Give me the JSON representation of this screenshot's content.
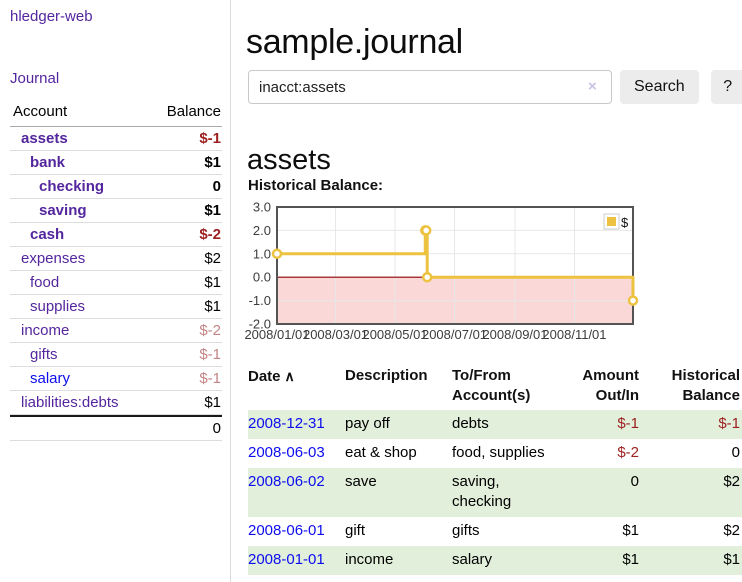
{
  "app": {
    "brand": "hledger-web"
  },
  "sidebar": {
    "nav_journal": "Journal",
    "accounts_table": {
      "headers": {
        "account": "Account",
        "balance": "Balance"
      },
      "rows": [
        {
          "name": "assets",
          "depth": 1,
          "bold": true,
          "balance": "$-1",
          "balance_style": "neg-strong",
          "link_style": "purple"
        },
        {
          "name": "bank",
          "depth": 2,
          "bold": true,
          "balance": "$1",
          "balance_style": "normal",
          "link_style": "purple"
        },
        {
          "name": "checking",
          "depth": 3,
          "bold": true,
          "balance": "0",
          "balance_style": "normal",
          "link_style": "purple"
        },
        {
          "name": "saving",
          "depth": 3,
          "bold": true,
          "balance": "$1",
          "balance_style": "normal",
          "link_style": "purple"
        },
        {
          "name": "cash",
          "depth": 2,
          "bold": true,
          "balance": "$-2",
          "balance_style": "neg-strong",
          "link_style": "purple"
        },
        {
          "name": "expenses",
          "depth": 1,
          "bold": false,
          "balance": "$2",
          "balance_style": "normal",
          "link_style": "purple"
        },
        {
          "name": "food",
          "depth": 2,
          "bold": false,
          "balance": "$1",
          "balance_style": "normal",
          "link_style": "purple"
        },
        {
          "name": "supplies",
          "depth": 2,
          "bold": false,
          "balance": "$1",
          "balance_style": "normal",
          "link_style": "purple"
        },
        {
          "name": "income",
          "depth": 1,
          "bold": false,
          "balance": "$-2",
          "balance_style": "neg-soft",
          "link_style": "purple"
        },
        {
          "name": "gifts",
          "depth": 2,
          "bold": false,
          "balance": "$-1",
          "balance_style": "neg-soft",
          "link_style": "purple"
        },
        {
          "name": "salary",
          "depth": 2,
          "bold": false,
          "balance": "$-1",
          "balance_style": "neg-soft",
          "link_style": "blue"
        },
        {
          "name": "liabilities:debts",
          "depth": 1,
          "bold": false,
          "balance": "$1",
          "balance_style": "normal",
          "link_style": "purple"
        }
      ],
      "total": "0"
    }
  },
  "main": {
    "title": "sample.journal",
    "search": {
      "value": "inacct:assets",
      "clear_label": "×",
      "button_label": "Search",
      "help_label": "?"
    },
    "account_heading": "assets",
    "chart_title": "Historical Balance:"
  },
  "chart_data": {
    "type": "line",
    "step": true,
    "title": "Historical Balance of assets",
    "ylim": [
      -2,
      3
    ],
    "yticks": [
      {
        "value": 3,
        "label": "3.0"
      },
      {
        "value": 2,
        "label": "2.0"
      },
      {
        "value": 1,
        "label": "1.0"
      },
      {
        "value": 0,
        "label": "0.0"
      },
      {
        "value": -1,
        "label": "-1.0"
      },
      {
        "value": -2,
        "label": "-2.0"
      }
    ],
    "xlim_days": [
      0,
      365
    ],
    "xticks": [
      {
        "day": 0,
        "label": "2008/01/01"
      },
      {
        "day": 60,
        "label": "2008/03/01"
      },
      {
        "day": 121,
        "label": "2008/05/01"
      },
      {
        "day": 182,
        "label": "2008/07/01"
      },
      {
        "day": 244,
        "label": "2008/09/01"
      },
      {
        "day": 305,
        "label": "2008/11/01"
      }
    ],
    "series": [
      {
        "name": "$",
        "color": "#edc240",
        "points": [
          {
            "date": "2008-01-01",
            "day": 0,
            "value": 1
          },
          {
            "date": "2008-06-01",
            "day": 152,
            "value": 2
          },
          {
            "date": "2008-06-02",
            "day": 153,
            "value": 2
          },
          {
            "date": "2008-06-03",
            "day": 154,
            "value": 0
          },
          {
            "date": "2008-12-31",
            "day": 365,
            "value": -1
          }
        ]
      }
    ],
    "legend": {
      "label": "$",
      "position": "top-right"
    },
    "negative_region_color": "#fbd8d8",
    "zero_line_color": "#8b0000",
    "grid_color": "#e7e7e7",
    "border_color": "#545454",
    "tick_label_color": "#3c3c3c"
  },
  "transactions": {
    "headers": [
      {
        "line1": "Date",
        "line2": "",
        "align": "left",
        "sort_icon": "∧"
      },
      {
        "line1": "Description",
        "line2": "",
        "align": "left"
      },
      {
        "line1": "To/From",
        "line2": "Account(s)",
        "align": "left"
      },
      {
        "line1": "Amount",
        "line2": "Out/In",
        "align": "right"
      },
      {
        "line1": "Historical",
        "line2": "Balance",
        "align": "right"
      }
    ],
    "rows": [
      {
        "date": "2008-12-31",
        "description": "pay off",
        "accounts": "debts",
        "amount": "$-1",
        "amount_negative": true,
        "balance": "$-1",
        "balance_negative": true,
        "shaded": true
      },
      {
        "date": "2008-06-03",
        "description": "eat & shop",
        "accounts": "food, supplies",
        "amount": "$-2",
        "amount_negative": true,
        "balance": "0",
        "balance_negative": false,
        "shaded": false
      },
      {
        "date": "2008-06-02",
        "description": "save",
        "accounts": "saving, checking",
        "amount": "0",
        "amount_negative": false,
        "balance": "$2",
        "balance_negative": false,
        "shaded": true
      },
      {
        "date": "2008-06-01",
        "description": "gift",
        "accounts": "gifts",
        "amount": "$1",
        "amount_negative": false,
        "balance": "$2",
        "balance_negative": false,
        "shaded": false
      },
      {
        "date": "2008-01-01",
        "description": "income",
        "accounts": "salary",
        "amount": "$1",
        "amount_negative": false,
        "balance": "$1",
        "balance_negative": false,
        "shaded": true
      }
    ]
  },
  "colors": {
    "link_purple": "#54269e",
    "link_blue": "#0d0dee",
    "negative_strong": "#9d1f1f",
    "negative_soft": "#c28585",
    "row_shade_green": "#e1efdb",
    "accent_gold": "#edc240"
  }
}
